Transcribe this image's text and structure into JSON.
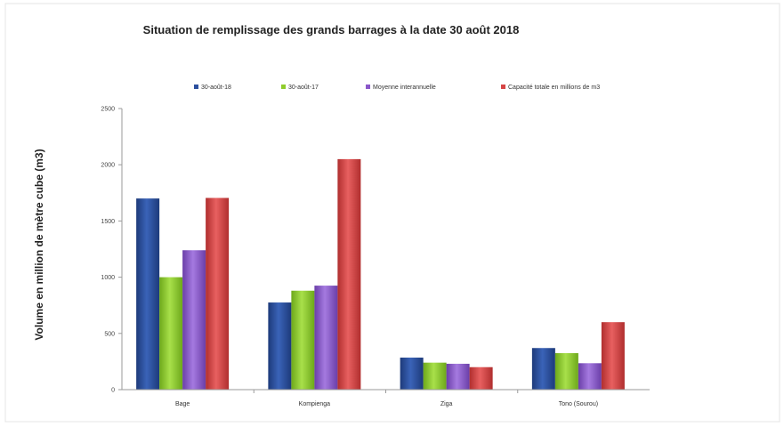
{
  "chart_data": {
    "type": "bar",
    "title": "Situation de remplissage des grands barrages à la date  30 août 2018",
    "ylabel": "Volume en million de mètre cube (m3)",
    "xlabel": "",
    "ylim": [
      0,
      2500
    ],
    "yticks": [
      "0",
      "500",
      "1000",
      "1500",
      "2000",
      "2500"
    ],
    "categories": [
      "Bage",
      "Kompienga",
      "Ziga",
      "Tono (Sourou)"
    ],
    "legend_position": "top",
    "grid": false,
    "series": [
      {
        "name": "30-août-18",
        "color": "#2b4f9e",
        "values": [
          1700,
          775,
          285,
          370
        ]
      },
      {
        "name": "30-août-17",
        "color": "#8fcc2c",
        "values": [
          1000,
          880,
          240,
          325
        ]
      },
      {
        "name": "Moyenne interannuelle",
        "color": "#8a57c9",
        "values": [
          1240,
          925,
          230,
          235
        ]
      },
      {
        "name": "Capacité totale en millions de m3",
        "color": "#d64545",
        "values": [
          1705,
          2050,
          200,
          600
        ]
      }
    ]
  }
}
